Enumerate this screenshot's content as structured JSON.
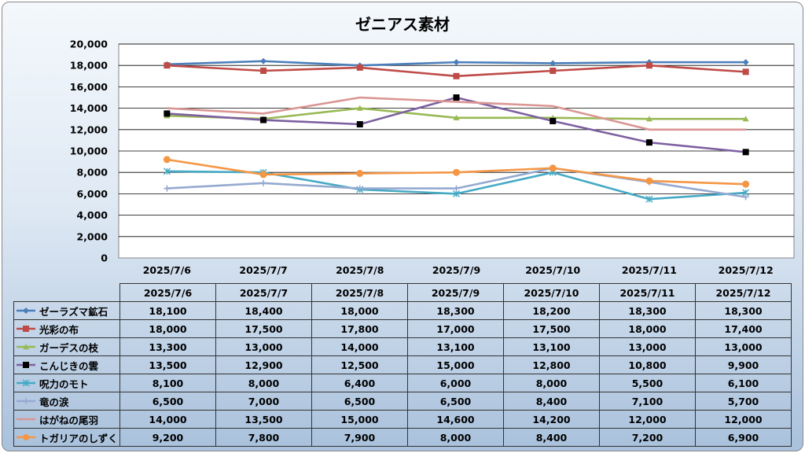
{
  "chart_data": {
    "type": "line",
    "title": "ゼニアス素材",
    "categories": [
      "2025/7/6",
      "2025/7/7",
      "2025/7/8",
      "2025/7/9",
      "2025/7/10",
      "2025/7/11",
      "2025/7/12"
    ],
    "ylim": [
      0,
      20000
    ],
    "ytick_labels": [
      "0",
      "2,000",
      "4,000",
      "6,000",
      "8,000",
      "10,000",
      "12,000",
      "14,000",
      "16,000",
      "18,000",
      "20,000"
    ],
    "grid": true,
    "legend": "data-table",
    "series": [
      {
        "name": "ゼーラズマ鉱石",
        "color": "#4a7ebb",
        "marker": "diamond",
        "values": [
          18100,
          18400,
          18000,
          18300,
          18200,
          18300,
          18300
        ],
        "labels": [
          "18,100",
          "18,400",
          "18,000",
          "18,300",
          "18,200",
          "18,300",
          "18,300"
        ]
      },
      {
        "name": "光彩の布",
        "color": "#be4b48",
        "marker": "square",
        "values": [
          18000,
          17500,
          17800,
          17000,
          17500,
          18000,
          17400
        ],
        "labels": [
          "18,000",
          "17,500",
          "17,800",
          "17,000",
          "17,500",
          "18,000",
          "17,400"
        ]
      },
      {
        "name": "ガーデスの枝",
        "color": "#98b954",
        "marker": "triangle",
        "values": [
          13300,
          13000,
          14000,
          13100,
          13100,
          13000,
          13000
        ],
        "labels": [
          "13,300",
          "13,000",
          "14,000",
          "13,100",
          "13,100",
          "13,000",
          "13,000"
        ]
      },
      {
        "name": "こんじきの雲",
        "color": "#7d60a0",
        "marker": "blacksquare",
        "values": [
          13500,
          12900,
          12500,
          15000,
          12800,
          10800,
          9900
        ],
        "labels": [
          "13,500",
          "12,900",
          "12,500",
          "15,000",
          "12,800",
          "10,800",
          "9,900"
        ]
      },
      {
        "name": "呪力のモト",
        "color": "#46aac5",
        "marker": "star",
        "values": [
          8100,
          8000,
          6400,
          6000,
          8000,
          5500,
          6100
        ],
        "labels": [
          "8,100",
          "8,000",
          "6,400",
          "6,000",
          "8,000",
          "5,500",
          "6,100"
        ]
      },
      {
        "name": "竜の涙",
        "color": "#95a9d0",
        "marker": "plus",
        "values": [
          6500,
          7000,
          6500,
          6500,
          8400,
          7100,
          5700
        ],
        "labels": [
          "6,500",
          "7,000",
          "6,500",
          "6,500",
          "8,400",
          "7,100",
          "5,700"
        ]
      },
      {
        "name": "はがねの尾羽",
        "color": "#da9694",
        "marker": "none",
        "values": [
          14000,
          13500,
          15000,
          14600,
          14200,
          12000,
          12000
        ],
        "labels": [
          "14,000",
          "13,500",
          "15,000",
          "14,600",
          "14,200",
          "12,000",
          "12,000"
        ]
      },
      {
        "name": "トガリアのしずく",
        "color": "#f59645",
        "marker": "circle",
        "values": [
          9200,
          7800,
          7900,
          8000,
          8400,
          7200,
          6900
        ],
        "labels": [
          "9,200",
          "7,800",
          "7,900",
          "8,000",
          "8,400",
          "7,200",
          "6,900"
        ]
      }
    ]
  }
}
